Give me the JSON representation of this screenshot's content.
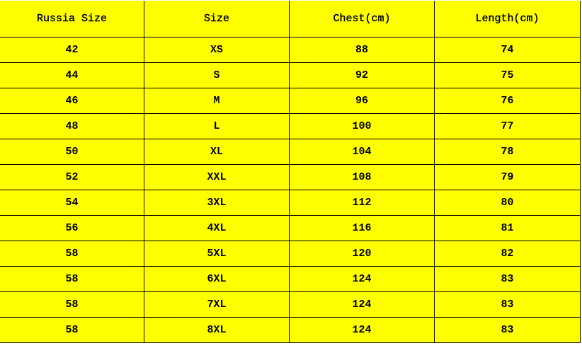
{
  "table": {
    "headers": [
      "Russia Size",
      "Size",
      "Chest(cm)",
      "Length(cm)"
    ],
    "rows": [
      [
        "42",
        "XS",
        "88",
        "74"
      ],
      [
        "44",
        "S",
        "92",
        "75"
      ],
      [
        "46",
        "M",
        "96",
        "76"
      ],
      [
        "48",
        "L",
        "100",
        "77"
      ],
      [
        "50",
        "XL",
        "104",
        "78"
      ],
      [
        "52",
        "XXL",
        "108",
        "79"
      ],
      [
        "54",
        "3XL",
        "112",
        "80"
      ],
      [
        "56",
        "4XL",
        "116",
        "81"
      ],
      [
        "58",
        "5XL",
        "120",
        "82"
      ],
      [
        "58",
        "6XL",
        "124",
        "83"
      ],
      [
        "58",
        "7XL",
        "124",
        "83"
      ],
      [
        "58",
        "8XL",
        "124",
        "83"
      ]
    ],
    "background_color": "#ffff00",
    "border_color": "#000000"
  }
}
